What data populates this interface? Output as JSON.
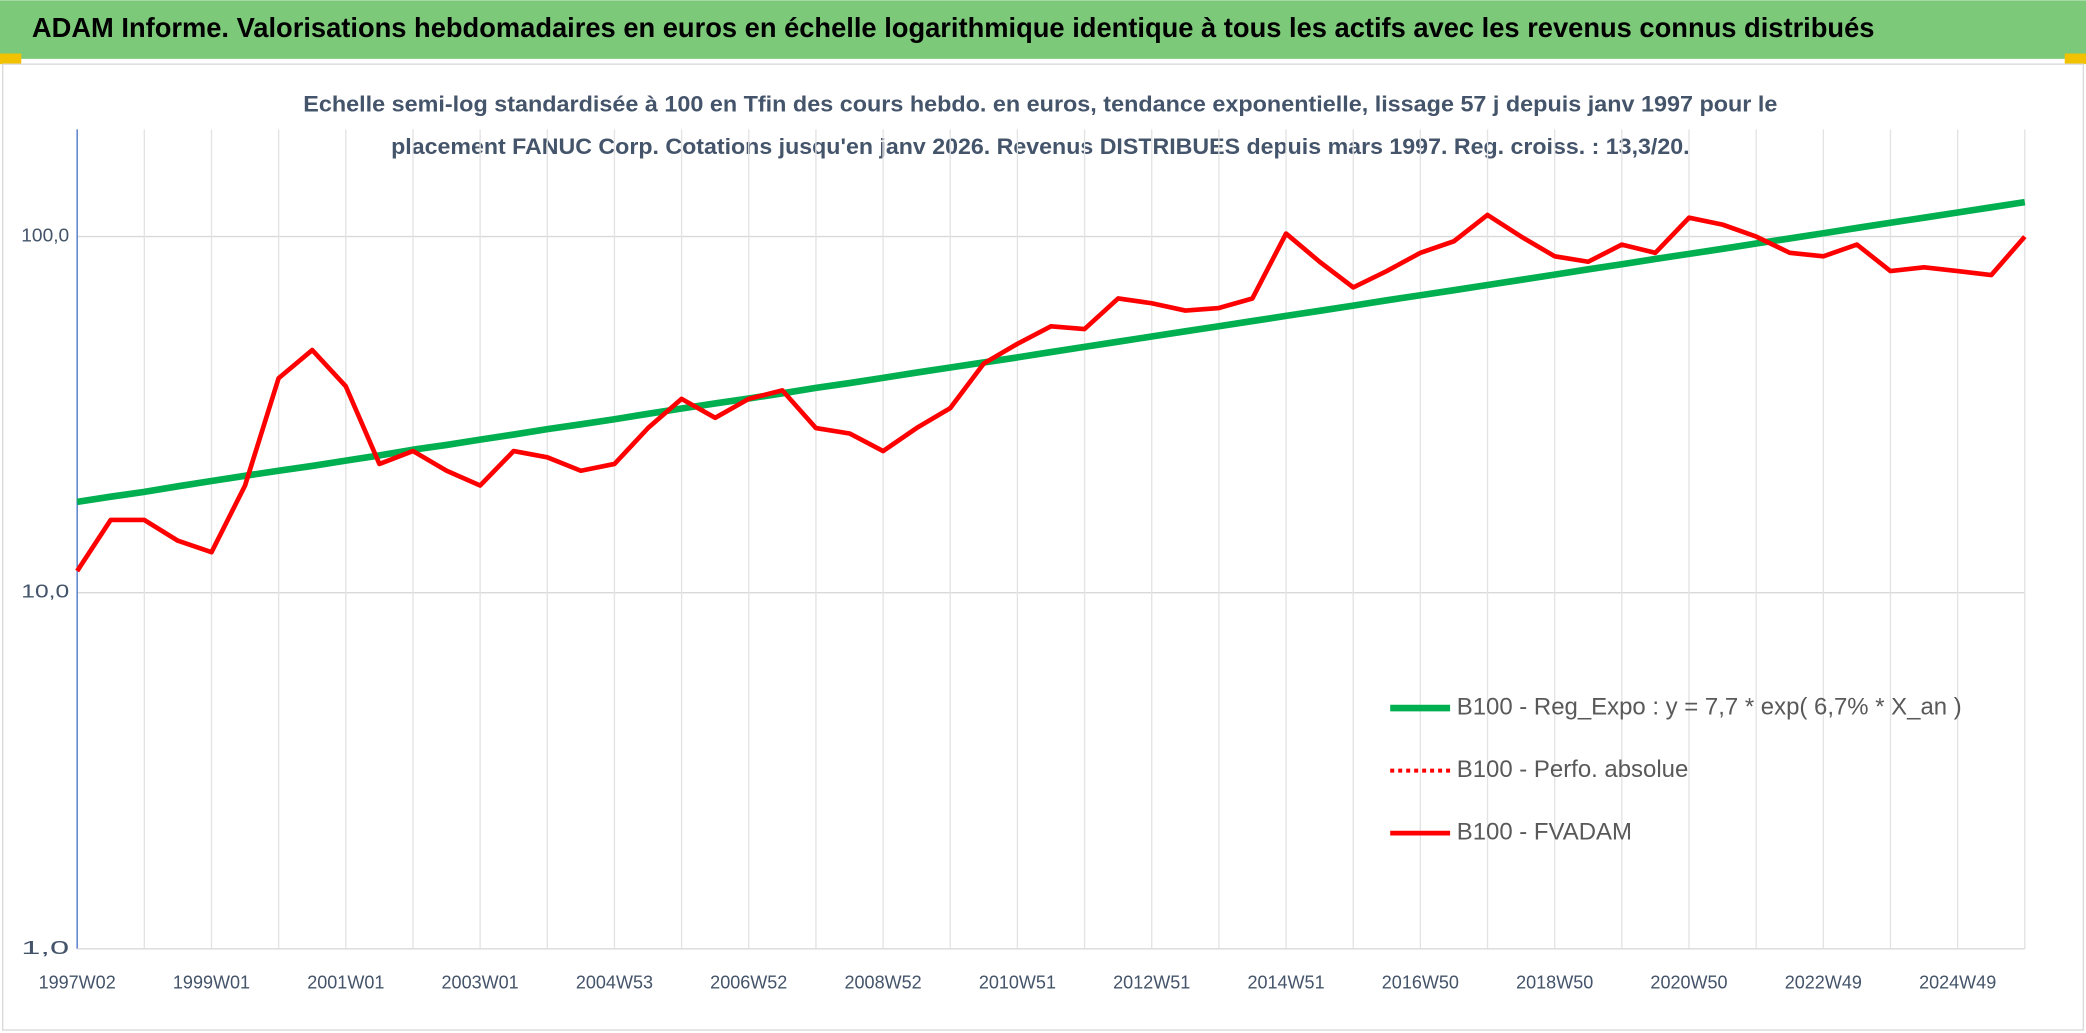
{
  "chart_data": {
    "type": "line",
    "title": "ADAM Informe. Valorisations hebdomadaires en euros en échelle logarithmique identique à tous les actifs avec les revenus connus distribués",
    "subtitle": [
      "Echelle semi-log standardisée à 100 en Tfin des cours hebdo. en euros, tendance exponentielle, lissage 57 j depuis janv 1997 pour le",
      "placement FANUC Corp. Cotations jusqu'en janv 2026. Revenus DISTRIBUES depuis mars 1997. Reg. croiss. : 13,3/20."
    ],
    "log_scale": true,
    "grid": true,
    "legend": "lower right",
    "ylim": [
      1,
      200
    ],
    "yticks": [
      {
        "value": 1,
        "label": "1,0"
      },
      {
        "value": 10,
        "label": "10,0"
      },
      {
        "value": 100,
        "label": "100,0"
      }
    ],
    "categories": [
      "1997W02",
      null,
      null,
      null,
      "1999W01",
      null,
      null,
      null,
      "2001W01",
      null,
      null,
      null,
      "2003W01",
      null,
      null,
      null,
      "2004W53",
      null,
      null,
      null,
      "2006W52",
      null,
      null,
      null,
      "2008W52",
      null,
      null,
      null,
      "2010W51",
      null,
      null,
      null,
      "2012W51",
      null,
      null,
      null,
      "2014W51",
      null,
      null,
      null,
      "2016W50",
      null,
      null,
      null,
      "2018W50",
      null,
      null,
      null,
      "2020W50",
      null,
      null,
      null,
      "2022W49",
      null,
      null,
      null,
      "2024W49",
      null,
      null
    ],
    "series": [
      {
        "name": "B100 - Reg_Expo : y = 7,7 * exp( 6,7% *  X_an )",
        "color": "#00b050",
        "values": [
          18.0,
          18.6,
          19.2,
          19.9,
          20.6,
          21.3,
          22.0,
          22.7,
          23.5,
          24.3,
          25.2,
          26.0,
          26.9,
          27.8,
          28.8,
          29.7,
          30.7,
          31.8,
          32.9,
          34.0,
          35.1,
          36.3,
          37.6,
          38.8,
          40.1,
          41.5,
          42.9,
          44.3,
          45.8,
          47.4,
          49.0,
          50.7,
          52.4,
          54.2,
          56.0,
          57.9,
          59.9,
          61.9,
          64.0,
          66.2,
          68.4,
          70.7,
          73.1,
          75.6,
          78.2,
          80.9,
          83.6,
          86.5,
          89.4,
          92.4,
          95.6,
          98.8,
          102.2,
          105.7,
          109.3,
          113.0,
          116.8,
          120.8,
          124.9
        ]
      },
      {
        "name": "B100 - Perfo. absolue",
        "color": "#ff0000",
        "dash": "dotted"
      },
      {
        "name": "B100 - FVADAM",
        "color": "#ff0000",
        "values": [
          11.5,
          16,
          16,
          14,
          13,
          20,
          40,
          48,
          38,
          23,
          25,
          22,
          20,
          25,
          24,
          22,
          23,
          29,
          35,
          31,
          35,
          37,
          29,
          28,
          25,
          29,
          33,
          44,
          50,
          56,
          55,
          67,
          65,
          62,
          63,
          67,
          102,
          85,
          72,
          80,
          90,
          97,
          115,
          100,
          88,
          85,
          95,
          90,
          113,
          108,
          100,
          90,
          88,
          95,
          80,
          82,
          80,
          78,
          100
        ]
      }
    ]
  }
}
